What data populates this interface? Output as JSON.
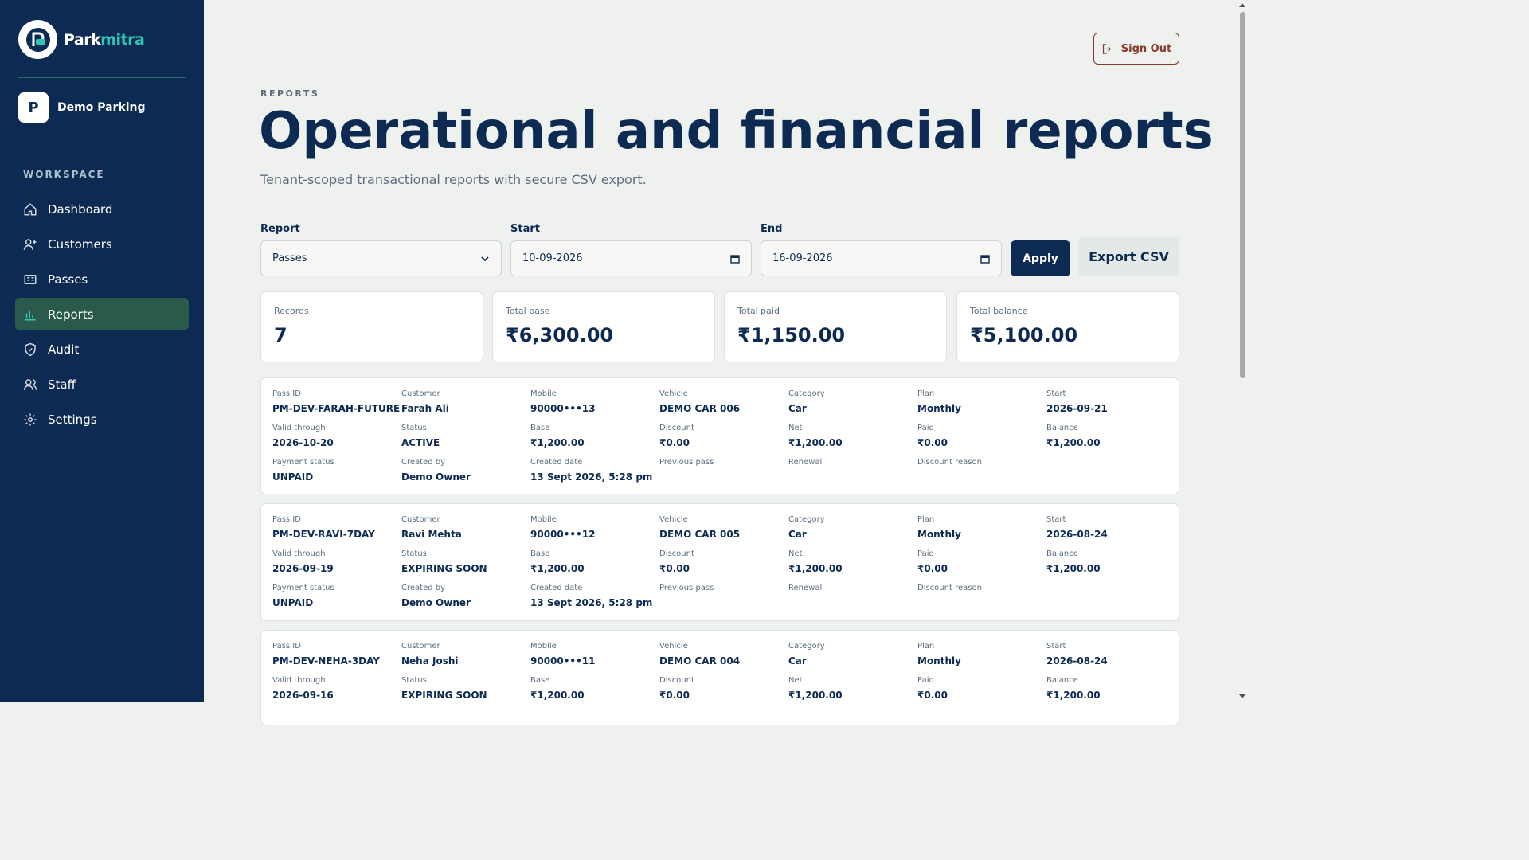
{
  "brand": {
    "name_part1": "Park",
    "name_part2": "mitra"
  },
  "tenant": {
    "initial": "P",
    "name": "Demo Parking"
  },
  "sidebar": {
    "section_label": "WORKSPACE",
    "items": [
      {
        "label": "Dashboard",
        "icon": "home-icon"
      },
      {
        "label": "Customers",
        "icon": "user-plus-icon"
      },
      {
        "label": "Passes",
        "icon": "pass-card-icon"
      },
      {
        "label": "Reports",
        "icon": "bar-chart-icon",
        "active": true
      },
      {
        "label": "Audit",
        "icon": "shield-check-icon"
      },
      {
        "label": "Staff",
        "icon": "users-icon"
      },
      {
        "label": "Settings",
        "icon": "gear-icon"
      }
    ]
  },
  "header": {
    "signout_label": "Sign Out",
    "eyebrow": "REPORTS",
    "title": "Operational and financial reports",
    "subtitle": "Tenant-scoped transactional reports with secure CSV export."
  },
  "filters": {
    "report_label": "Report",
    "report_value": "Passes",
    "start_label": "Start",
    "start_value": "10-09-2026",
    "end_label": "End",
    "end_value": "16-09-2026",
    "apply_label": "Apply",
    "export_label": "Export CSV"
  },
  "stats": [
    {
      "label": "Records",
      "value": "7"
    },
    {
      "label": "Total base",
      "value": "₹6,300.00"
    },
    {
      "label": "Total paid",
      "value": "₹1,150.00"
    },
    {
      "label": "Total balance",
      "value": "₹5,100.00"
    }
  ],
  "records": [
    {
      "fields": [
        [
          "Pass ID",
          "PM-DEV-FARAH-FUTURE"
        ],
        [
          "Customer",
          "Farah Ali"
        ],
        [
          "Mobile",
          "90000•••13"
        ],
        [
          "Vehicle",
          "DEMO CAR 006"
        ],
        [
          "Category",
          "Car"
        ],
        [
          "Plan",
          "Monthly"
        ],
        [
          "Start",
          "2026-09-21"
        ],
        [
          "Valid through",
          "2026-10-20"
        ],
        [
          "Status",
          "ACTIVE"
        ],
        [
          "Base",
          "₹1,200.00"
        ],
        [
          "Discount",
          "₹0.00"
        ],
        [
          "Net",
          "₹1,200.00"
        ],
        [
          "Paid",
          "₹0.00"
        ],
        [
          "Balance",
          "₹1,200.00"
        ],
        [
          "Payment status",
          "UNPAID"
        ],
        [
          "Created by",
          "Demo Owner"
        ],
        [
          "Created date",
          "13 Sept 2026, 5:28 pm"
        ],
        [
          "Previous pass",
          ""
        ],
        [
          "Renewal",
          ""
        ],
        [
          "Discount reason",
          ""
        ]
      ]
    },
    {
      "fields": [
        [
          "Pass ID",
          "PM-DEV-RAVI-7DAY"
        ],
        [
          "Customer",
          "Ravi Mehta"
        ],
        [
          "Mobile",
          "90000•••12"
        ],
        [
          "Vehicle",
          "DEMO CAR 005"
        ],
        [
          "Category",
          "Car"
        ],
        [
          "Plan",
          "Monthly"
        ],
        [
          "Start",
          "2026-08-24"
        ],
        [
          "Valid through",
          "2026-09-19"
        ],
        [
          "Status",
          "EXPIRING SOON"
        ],
        [
          "Base",
          "₹1,200.00"
        ],
        [
          "Discount",
          "₹0.00"
        ],
        [
          "Net",
          "₹1,200.00"
        ],
        [
          "Paid",
          "₹0.00"
        ],
        [
          "Balance",
          "₹1,200.00"
        ],
        [
          "Payment status",
          "UNPAID"
        ],
        [
          "Created by",
          "Demo Owner"
        ],
        [
          "Created date",
          "13 Sept 2026, 5:28 pm"
        ],
        [
          "Previous pass",
          ""
        ],
        [
          "Renewal",
          ""
        ],
        [
          "Discount reason",
          ""
        ]
      ]
    },
    {
      "fields": [
        [
          "Pass ID",
          "PM-DEV-NEHA-3DAY"
        ],
        [
          "Customer",
          "Neha Joshi"
        ],
        [
          "Mobile",
          "90000•••11"
        ],
        [
          "Vehicle",
          "DEMO CAR 004"
        ],
        [
          "Category",
          "Car"
        ],
        [
          "Plan",
          "Monthly"
        ],
        [
          "Start",
          "2026-08-24"
        ],
        [
          "Valid through",
          "2026-09-16"
        ],
        [
          "Status",
          "EXPIRING SOON"
        ],
        [
          "Base",
          "₹1,200.00"
        ],
        [
          "Discount",
          "₹0.00"
        ],
        [
          "Net",
          "₹1,200.00"
        ],
        [
          "Paid",
          "₹0.00"
        ],
        [
          "Balance",
          "₹1,200.00"
        ]
      ]
    }
  ],
  "colors": {
    "sidebar": "#0d2b52",
    "active_nav": "#2a5a4c",
    "brand_accent": "#2fc4b5",
    "primary": "#0d2b52",
    "danger": "#8a3a2a"
  }
}
